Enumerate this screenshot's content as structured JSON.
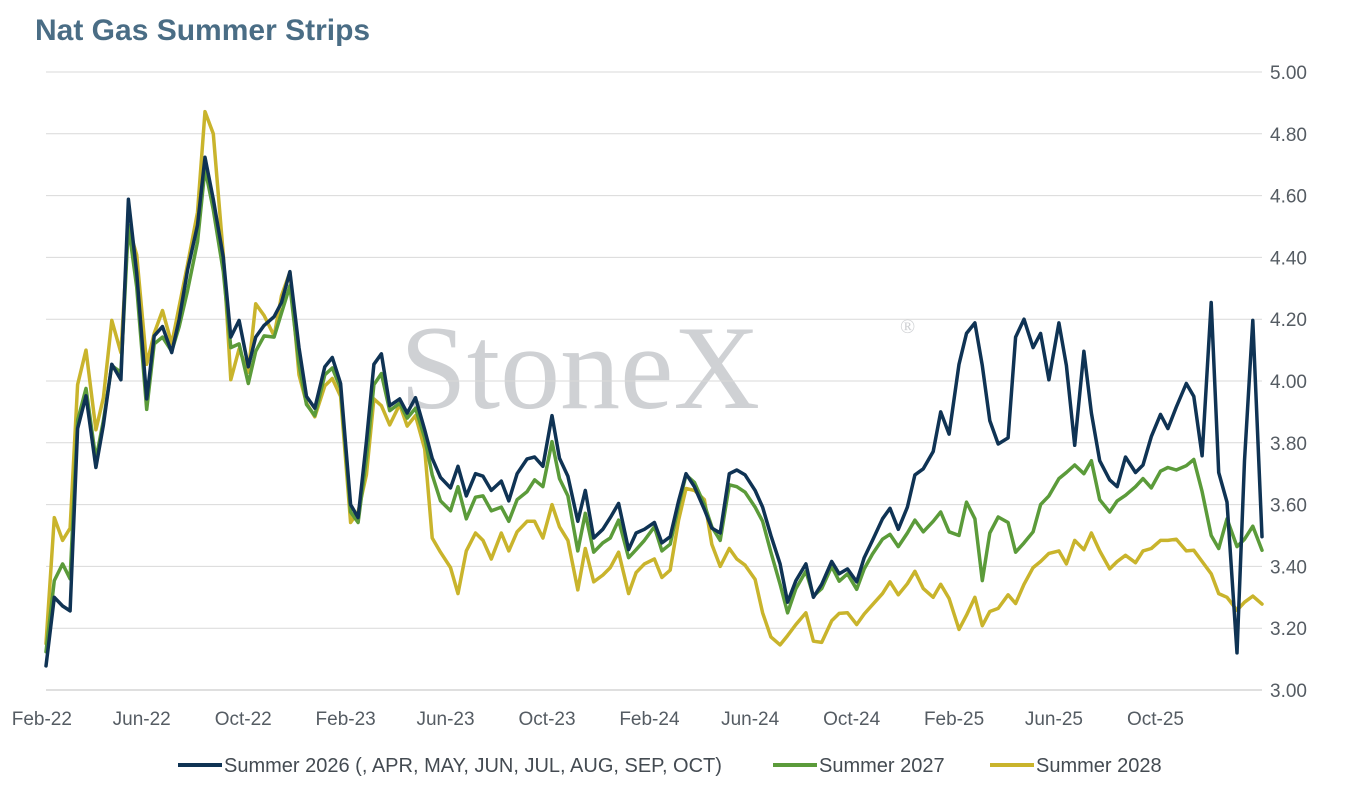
{
  "chart_data": {
    "type": "line",
    "title": "Nat Gas Summer Strips",
    "watermark": "StoneX",
    "watermark_mark": "®",
    "ylim": [
      3.0,
      5.0
    ],
    "y_ticks": [
      "3.00",
      "3.20",
      "3.40",
      "3.60",
      "3.80",
      "4.00",
      "4.20",
      "4.40",
      "4.60",
      "4.80",
      "5.00"
    ],
    "x_ticks": [
      "Feb-22",
      "Jun-22",
      "Oct-22",
      "Feb-23",
      "Jun-23",
      "Oct-23",
      "Feb-24",
      "Jun-24",
      "Oct-24",
      "Feb-25",
      "Jun-25",
      "Oct-25"
    ],
    "grid": true,
    "y_axis_position": "right",
    "legend_position": "bottom",
    "series": [
      {
        "name": "Summer 2026 (, APR, MAY, JUN, JUL, AUG, SEP, OCT)",
        "color": "#0f3354",
        "x": [
          "2022-01-31",
          "2022-02-10",
          "2022-02-20",
          "2022-03-01",
          "2022-03-10",
          "2022-03-20",
          "2022-04-01",
          "2022-04-10",
          "2022-04-20",
          "2022-05-01",
          "2022-05-10",
          "2022-05-20",
          "2022-06-01",
          "2022-06-10",
          "2022-06-20",
          "2022-07-01",
          "2022-07-10",
          "2022-07-20",
          "2022-08-01",
          "2022-08-10",
          "2022-08-20",
          "2022-09-01",
          "2022-09-10",
          "2022-09-20",
          "2022-10-01",
          "2022-10-10",
          "2022-10-20",
          "2022-11-01",
          "2022-11-10",
          "2022-11-20",
          "2022-12-01",
          "2022-12-10",
          "2022-12-20",
          "2023-01-01",
          "2023-01-10",
          "2023-01-20",
          "2023-02-01",
          "2023-02-10",
          "2023-02-20",
          "2023-03-01",
          "2023-03-10",
          "2023-03-20",
          "2023-04-01",
          "2023-04-10",
          "2023-04-20",
          "2023-05-01",
          "2023-05-10",
          "2023-05-20",
          "2023-06-01",
          "2023-06-10",
          "2023-06-20",
          "2023-07-01",
          "2023-07-10",
          "2023-07-20",
          "2023-08-01",
          "2023-08-10",
          "2023-08-20",
          "2023-09-01",
          "2023-09-10",
          "2023-09-20",
          "2023-10-01",
          "2023-10-10",
          "2023-10-20",
          "2023-11-01",
          "2023-11-10",
          "2023-11-20",
          "2023-12-01",
          "2023-12-10",
          "2023-12-20",
          "2024-01-01",
          "2024-01-10",
          "2024-01-20",
          "2024-02-01",
          "2024-02-10",
          "2024-02-20",
          "2024-03-01",
          "2024-03-10",
          "2024-03-20",
          "2024-04-01",
          "2024-04-10",
          "2024-04-20",
          "2024-05-01",
          "2024-05-10",
          "2024-05-20",
          "2024-06-01",
          "2024-06-10",
          "2024-06-20",
          "2024-07-01",
          "2024-07-10",
          "2024-07-20",
          "2024-08-01",
          "2024-08-10",
          "2024-08-20",
          "2024-09-01",
          "2024-09-10",
          "2024-09-20",
          "2024-10-01",
          "2024-10-10",
          "2024-10-20",
          "2024-11-01",
          "2024-11-10",
          "2024-11-20",
          "2024-12-01",
          "2024-12-10",
          "2024-12-20",
          "2025-01-01",
          "2025-01-10",
          "2025-01-20",
          "2025-02-01",
          "2025-02-10",
          "2025-02-20",
          "2025-03-01",
          "2025-03-10",
          "2025-03-20",
          "2025-04-01",
          "2025-04-10",
          "2025-04-20",
          "2025-05-01",
          "2025-05-10",
          "2025-05-20",
          "2025-06-01",
          "2025-06-10",
          "2025-06-20",
          "2025-07-01",
          "2025-07-10",
          "2025-07-20",
          "2025-08-01",
          "2025-08-10",
          "2025-08-20",
          "2025-09-01",
          "2025-09-10",
          "2025-09-20",
          "2025-10-01",
          "2025-10-10",
          "2025-10-20",
          "2025-11-01",
          "2025-11-10",
          "2025-11-20",
          "2025-12-01",
          "2025-12-10",
          "2025-12-20",
          "2026-01-01",
          "2026-01-10",
          "2026-01-20",
          "2026-01-31"
        ],
        "values": [
          3.07,
          3.3,
          3.28,
          3.26,
          3.85,
          3.96,
          3.72,
          3.85,
          4.05,
          4.0,
          4.58,
          4.35,
          3.95,
          4.15,
          4.18,
          4.1,
          4.2,
          4.35,
          4.5,
          4.72,
          4.58,
          4.4,
          4.15,
          4.2,
          4.05,
          4.15,
          4.18,
          4.2,
          4.25,
          4.35,
          4.1,
          3.95,
          3.92,
          4.05,
          4.08,
          4.0,
          3.6,
          3.55,
          3.8,
          4.05,
          4.08,
          3.92,
          3.95,
          3.9,
          3.95,
          3.85,
          3.75,
          3.68,
          3.65,
          3.72,
          3.62,
          3.7,
          3.7,
          3.65,
          3.68,
          3.62,
          3.7,
          3.74,
          3.75,
          3.72,
          3.88,
          3.75,
          3.7,
          3.55,
          3.65,
          3.5,
          3.52,
          3.55,
          3.6,
          3.45,
          3.5,
          3.52,
          3.55,
          3.48,
          3.5,
          3.62,
          3.7,
          3.65,
          3.58,
          3.52,
          3.5,
          3.7,
          3.72,
          3.7,
          3.65,
          3.6,
          3.5,
          3.4,
          3.28,
          3.35,
          3.4,
          3.3,
          3.35,
          3.42,
          3.38,
          3.4,
          3.35,
          3.42,
          3.48,
          3.55,
          3.58,
          3.52,
          3.6,
          3.7,
          3.72,
          3.78,
          3.9,
          3.82,
          4.05,
          4.15,
          4.18,
          4.05,
          3.88,
          3.8,
          3.82,
          4.15,
          4.2,
          4.1,
          4.15,
          4.0,
          4.18,
          4.05,
          3.8,
          4.1,
          3.9,
          3.75,
          3.68,
          3.65,
          3.75,
          3.7,
          3.72,
          3.82,
          3.9,
          3.85,
          3.92,
          4.0,
          3.95,
          3.75,
          4.25,
          3.7,
          3.6,
          3.12,
          3.75,
          4.2,
          3.5
        ],
        "endpoint": 3.5
      },
      {
        "name": "Summer 2027",
        "color": "#5b9b3a",
        "x": [
          "2022-01-31",
          "2022-02-10",
          "2022-02-20",
          "2022-03-01",
          "2022-03-10",
          "2022-03-20",
          "2022-04-01",
          "2022-04-10",
          "2022-04-20",
          "2022-05-01",
          "2022-05-10",
          "2022-05-20",
          "2022-06-01",
          "2022-06-10",
          "2022-06-20",
          "2022-07-01",
          "2022-07-10",
          "2022-07-20",
          "2022-08-01",
          "2022-08-10",
          "2022-08-20",
          "2022-09-01",
          "2022-09-10",
          "2022-09-20",
          "2022-10-01",
          "2022-10-10",
          "2022-10-20",
          "2022-11-01",
          "2022-11-10",
          "2022-11-20",
          "2022-12-01",
          "2022-12-10",
          "2022-12-20",
          "2023-01-01",
          "2023-01-10",
          "2023-01-20",
          "2023-02-01",
          "2023-02-10",
          "2023-02-20",
          "2023-03-01",
          "2023-03-10",
          "2023-03-20",
          "2023-04-01",
          "2023-04-10",
          "2023-04-20",
          "2023-05-01",
          "2023-05-10",
          "2023-05-20",
          "2023-06-01",
          "2023-06-10",
          "2023-06-20",
          "2023-07-01",
          "2023-07-10",
          "2023-07-20",
          "2023-08-01",
          "2023-08-10",
          "2023-08-20",
          "2023-09-01",
          "2023-09-10",
          "2023-09-20",
          "2023-10-01",
          "2023-10-10",
          "2023-10-20",
          "2023-11-01",
          "2023-11-10",
          "2023-11-20",
          "2023-12-01",
          "2023-12-10",
          "2023-12-20",
          "2024-01-01",
          "2024-01-10",
          "2024-01-20",
          "2024-02-01",
          "2024-02-10",
          "2024-02-20",
          "2024-03-01",
          "2024-03-10",
          "2024-03-20",
          "2024-04-01",
          "2024-04-10",
          "2024-04-20",
          "2024-05-01",
          "2024-05-10",
          "2024-05-20",
          "2024-06-01",
          "2024-06-10",
          "2024-06-20",
          "2024-07-01",
          "2024-07-10",
          "2024-07-20",
          "2024-08-01",
          "2024-08-10",
          "2024-08-20",
          "2024-09-01",
          "2024-09-10",
          "2024-09-20",
          "2024-10-01",
          "2024-10-10",
          "2024-10-20",
          "2024-11-01",
          "2024-11-10",
          "2024-11-20",
          "2024-12-01",
          "2024-12-10",
          "2024-12-20",
          "2025-01-01",
          "2025-01-10",
          "2025-01-20",
          "2025-02-01",
          "2025-02-10",
          "2025-02-20",
          "2025-03-01",
          "2025-03-10",
          "2025-03-20",
          "2025-04-01",
          "2025-04-10",
          "2025-04-20",
          "2025-05-01",
          "2025-05-10",
          "2025-05-20",
          "2025-06-01",
          "2025-06-10",
          "2025-06-20",
          "2025-07-01",
          "2025-07-10",
          "2025-07-20",
          "2025-08-01",
          "2025-08-10",
          "2025-08-20",
          "2025-09-01",
          "2025-09-10",
          "2025-09-20",
          "2025-10-01",
          "2025-10-10",
          "2025-10-20",
          "2025-11-01",
          "2025-11-10",
          "2025-11-20",
          "2025-12-01",
          "2025-12-10",
          "2025-12-20",
          "2026-01-01",
          "2026-01-10",
          "2026-01-20",
          "2026-01-31"
        ],
        "values": [
          3.12,
          3.35,
          3.4,
          3.36,
          3.88,
          3.98,
          3.75,
          3.88,
          4.05,
          4.02,
          4.5,
          4.3,
          3.9,
          4.12,
          4.15,
          4.1,
          4.18,
          4.3,
          4.45,
          4.68,
          4.55,
          4.35,
          4.1,
          4.12,
          4.0,
          4.1,
          4.15,
          4.15,
          4.22,
          4.3,
          4.05,
          3.92,
          3.88,
          4.02,
          4.05,
          3.98,
          3.58,
          3.55,
          3.75,
          3.98,
          4.02,
          3.9,
          3.92,
          3.88,
          3.92,
          3.82,
          3.7,
          3.62,
          3.58,
          3.65,
          3.55,
          3.62,
          3.62,
          3.58,
          3.6,
          3.55,
          3.62,
          3.65,
          3.68,
          3.65,
          3.8,
          3.68,
          3.62,
          3.45,
          3.58,
          3.45,
          3.48,
          3.5,
          3.55,
          3.42,
          3.45,
          3.48,
          3.52,
          3.45,
          3.48,
          3.6,
          3.7,
          3.68,
          3.6,
          3.52,
          3.48,
          3.66,
          3.65,
          3.64,
          3.6,
          3.55,
          3.45,
          3.35,
          3.25,
          3.32,
          3.38,
          3.3,
          3.32,
          3.4,
          3.36,
          3.38,
          3.33,
          3.4,
          3.44,
          3.48,
          3.5,
          3.46,
          3.5,
          3.55,
          3.52,
          3.55,
          3.58,
          3.52,
          3.5,
          3.6,
          3.55,
          3.35,
          3.5,
          3.56,
          3.55,
          3.45,
          3.48,
          3.52,
          3.6,
          3.62,
          3.68,
          3.7,
          3.72,
          3.7,
          3.75,
          3.62,
          3.58,
          3.62,
          3.63,
          3.65,
          3.68,
          3.65,
          3.7,
          3.72,
          3.72,
          3.73,
          3.75,
          3.65,
          3.5,
          3.45,
          3.55,
          3.46,
          3.48,
          3.53,
          3.46
        ],
        "endpoint": 3.46
      },
      {
        "name": "Summer 2028",
        "color": "#c9b42c",
        "x": [
          "2022-01-31",
          "2022-02-10",
          "2022-02-20",
          "2022-03-01",
          "2022-03-10",
          "2022-03-20",
          "2022-04-01",
          "2022-04-10",
          "2022-04-20",
          "2022-05-01",
          "2022-05-10",
          "2022-05-20",
          "2022-06-01",
          "2022-06-10",
          "2022-06-20",
          "2022-07-01",
          "2022-07-10",
          "2022-07-20",
          "2022-08-01",
          "2022-08-10",
          "2022-08-20",
          "2022-09-01",
          "2022-09-10",
          "2022-09-20",
          "2022-10-01",
          "2022-10-10",
          "2022-10-20",
          "2022-11-01",
          "2022-11-10",
          "2022-11-20",
          "2022-12-01",
          "2022-12-10",
          "2022-12-20",
          "2023-01-01",
          "2023-01-10",
          "2023-01-20",
          "2023-02-01",
          "2023-02-10",
          "2023-02-20",
          "2023-03-01",
          "2023-03-10",
          "2023-03-20",
          "2023-04-01",
          "2023-04-10",
          "2023-04-20",
          "2023-05-01",
          "2023-05-10",
          "2023-05-20",
          "2023-06-01",
          "2023-06-10",
          "2023-06-20",
          "2023-07-01",
          "2023-07-10",
          "2023-07-20",
          "2023-08-01",
          "2023-08-10",
          "2023-08-20",
          "2023-09-01",
          "2023-09-10",
          "2023-09-20",
          "2023-10-01",
          "2023-10-10",
          "2023-10-20",
          "2023-11-01",
          "2023-11-10",
          "2023-11-20",
          "2023-12-01",
          "2023-12-10",
          "2023-12-20",
          "2024-01-01",
          "2024-01-10",
          "2024-01-20",
          "2024-02-01",
          "2024-02-10",
          "2024-02-20",
          "2024-03-01",
          "2024-03-10",
          "2024-03-20",
          "2024-04-01",
          "2024-04-10",
          "2024-04-20",
          "2024-05-01",
          "2024-05-10",
          "2024-05-20",
          "2024-06-01",
          "2024-06-10",
          "2024-06-20",
          "2024-07-01",
          "2024-07-10",
          "2024-07-20",
          "2024-08-01",
          "2024-08-10",
          "2024-08-20",
          "2024-09-01",
          "2024-09-10",
          "2024-09-20",
          "2024-10-01",
          "2024-10-10",
          "2024-10-20",
          "2024-11-01",
          "2024-11-10",
          "2024-11-20",
          "2024-12-01",
          "2024-12-10",
          "2024-12-20",
          "2025-01-01",
          "2025-01-10",
          "2025-01-20",
          "2025-02-01",
          "2025-02-10",
          "2025-02-20",
          "2025-03-01",
          "2025-03-10",
          "2025-03-20",
          "2025-04-01",
          "2025-04-10",
          "2025-04-20",
          "2025-05-01",
          "2025-05-10",
          "2025-05-20",
          "2025-06-01",
          "2025-06-10",
          "2025-06-20",
          "2025-07-01",
          "2025-07-10",
          "2025-07-20",
          "2025-08-01",
          "2025-08-10",
          "2025-08-20",
          "2025-09-01",
          "2025-09-10",
          "2025-09-20",
          "2025-10-01",
          "2025-10-10",
          "2025-10-20",
          "2025-11-01",
          "2025-11-10",
          "2025-11-20",
          "2025-12-01",
          "2025-12-10",
          "2025-12-20",
          "2026-01-01",
          "2026-01-10",
          "2026-01-20",
          "2026-01-31"
        ],
        "values": [
          3.15,
          3.55,
          3.48,
          3.52,
          3.98,
          4.1,
          3.85,
          3.95,
          4.2,
          4.1,
          4.5,
          4.4,
          4.05,
          4.15,
          4.22,
          4.12,
          4.25,
          4.38,
          4.55,
          4.88,
          4.8,
          4.4,
          4.0,
          4.1,
          4.02,
          4.25,
          4.22,
          4.15,
          4.28,
          4.36,
          4.02,
          3.92,
          3.88,
          3.98,
          4.0,
          3.95,
          3.55,
          3.58,
          3.7,
          3.95,
          3.92,
          3.85,
          3.92,
          3.85,
          3.88,
          3.78,
          3.5,
          3.45,
          3.4,
          3.32,
          3.45,
          3.5,
          3.48,
          3.42,
          3.5,
          3.45,
          3.52,
          3.55,
          3.55,
          3.5,
          3.6,
          3.52,
          3.48,
          3.32,
          3.45,
          3.35,
          3.38,
          3.4,
          3.45,
          3.32,
          3.38,
          3.4,
          3.42,
          3.36,
          3.38,
          3.55,
          3.66,
          3.65,
          3.62,
          3.48,
          3.4,
          3.45,
          3.42,
          3.4,
          3.35,
          3.25,
          3.18,
          3.15,
          3.18,
          3.22,
          3.25,
          3.15,
          3.15,
          3.22,
          3.24,
          3.25,
          3.22,
          3.25,
          3.28,
          3.32,
          3.35,
          3.3,
          3.34,
          3.38,
          3.32,
          3.3,
          3.35,
          3.3,
          3.2,
          3.25,
          3.3,
          3.2,
          3.25,
          3.26,
          3.3,
          3.28,
          3.35,
          3.4,
          3.42,
          3.45,
          3.45,
          3.4,
          3.48,
          3.45,
          3.5,
          3.45,
          3.4,
          3.42,
          3.44,
          3.42,
          3.45,
          3.45,
          3.48,
          3.48,
          3.48,
          3.45,
          3.46,
          3.42,
          3.38,
          3.32,
          3.3,
          3.25,
          3.28,
          3.3,
          3.27
        ],
        "endpoint": 3.27
      }
    ]
  }
}
